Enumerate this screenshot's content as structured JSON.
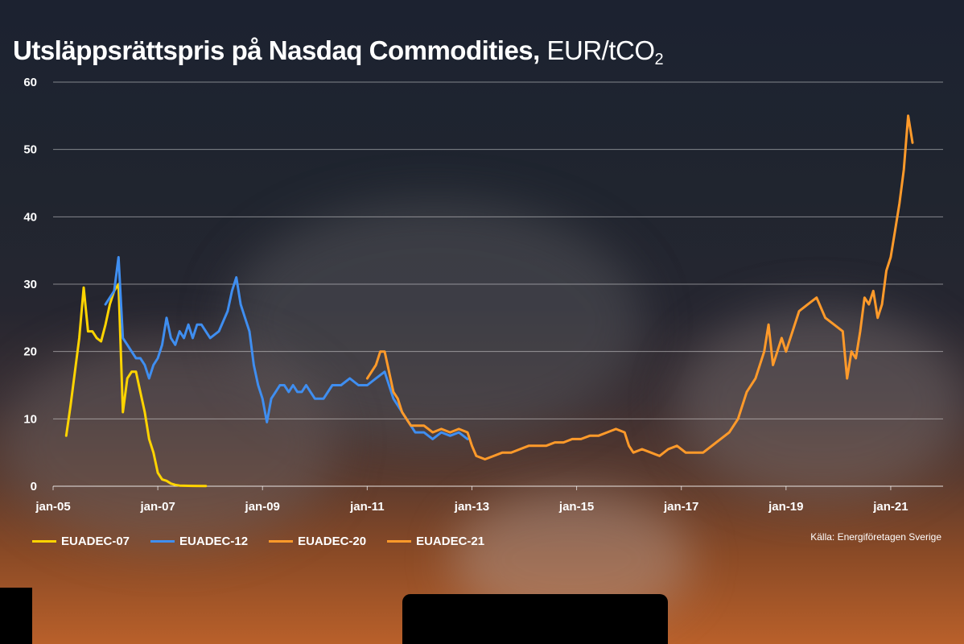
{
  "title": {
    "main": "Utsläppsrättspris på Nasdaq Commodities,",
    "unit": "EUR/tCO",
    "unit_sub": "2"
  },
  "source": "Källa: Energiföretagen Sverige",
  "chart_data": {
    "type": "line",
    "title": "Utsläppsrättspris på Nasdaq Commodities, EUR/tCO2",
    "xlabel": "",
    "ylabel": "",
    "ylim": [
      0,
      60
    ],
    "yticks": [
      0,
      10,
      20,
      30,
      40,
      50,
      60
    ],
    "xlim": [
      "2005-01",
      "2022-01"
    ],
    "xticks": [
      "jan-05",
      "jan-07",
      "jan-09",
      "jan-11",
      "jan-13",
      "jan-15",
      "jan-17",
      "jan-19",
      "jan-21"
    ],
    "grid": true,
    "legend_position": "bottom",
    "series": [
      {
        "name": "EUADEC-07",
        "color": "#ffd400",
        "points": [
          [
            "2005-04",
            7.5
          ],
          [
            "2005-05",
            12
          ],
          [
            "2005-06",
            17
          ],
          [
            "2005-07",
            22
          ],
          [
            "2005-08",
            29.5
          ],
          [
            "2005-09",
            23
          ],
          [
            "2005-10",
            23
          ],
          [
            "2005-11",
            22
          ],
          [
            "2005-12",
            21.5
          ],
          [
            "2006-01",
            24
          ],
          [
            "2006-02",
            27
          ],
          [
            "2006-03",
            29
          ],
          [
            "2006-04",
            30
          ],
          [
            "2006-05",
            11
          ],
          [
            "2006-06",
            16
          ],
          [
            "2006-07",
            17
          ],
          [
            "2006-08",
            17
          ],
          [
            "2006-09",
            14
          ],
          [
            "2006-10",
            11
          ],
          [
            "2006-11",
            7
          ],
          [
            "2006-12",
            5
          ],
          [
            "2007-01",
            2
          ],
          [
            "2007-02",
            1
          ],
          [
            "2007-03",
            0.8
          ],
          [
            "2007-04",
            0.4
          ],
          [
            "2007-05",
            0.2
          ],
          [
            "2007-06",
            0.1
          ],
          [
            "2007-09",
            0.05
          ],
          [
            "2007-12",
            0.03
          ]
        ]
      },
      {
        "name": "EUADEC-12",
        "color": "#3f8ef0",
        "points": [
          [
            "2006-01",
            27
          ],
          [
            "2006-03",
            29
          ],
          [
            "2006-04",
            34
          ],
          [
            "2006-05",
            22
          ],
          [
            "2006-06",
            21
          ],
          [
            "2006-07",
            20
          ],
          [
            "2006-08",
            19
          ],
          [
            "2006-09",
            19
          ],
          [
            "2006-10",
            18
          ],
          [
            "2006-11",
            16
          ],
          [
            "2006-12",
            18
          ],
          [
            "2007-01",
            19
          ],
          [
            "2007-02",
            21
          ],
          [
            "2007-03",
            25
          ],
          [
            "2007-04",
            22
          ],
          [
            "2007-05",
            21
          ],
          [
            "2007-06",
            23
          ],
          [
            "2007-07",
            22
          ],
          [
            "2007-08",
            24
          ],
          [
            "2007-09",
            22
          ],
          [
            "2007-10",
            24
          ],
          [
            "2007-11",
            24
          ],
          [
            "2008-01",
            22
          ],
          [
            "2008-03",
            23
          ],
          [
            "2008-05",
            26
          ],
          [
            "2008-06",
            29
          ],
          [
            "2008-07",
            31
          ],
          [
            "2008-08",
            27
          ],
          [
            "2008-09",
            25
          ],
          [
            "2008-10",
            23
          ],
          [
            "2008-11",
            18
          ],
          [
            "2008-12",
            15
          ],
          [
            "2009-01",
            13
          ],
          [
            "2009-02",
            9.5
          ],
          [
            "2009-03",
            13
          ],
          [
            "2009-04",
            14
          ],
          [
            "2009-05",
            15
          ],
          [
            "2009-06",
            15
          ],
          [
            "2009-07",
            14
          ],
          [
            "2009-08",
            15
          ],
          [
            "2009-09",
            14
          ],
          [
            "2009-10",
            14
          ],
          [
            "2009-11",
            15
          ],
          [
            "2009-12",
            14
          ],
          [
            "2010-01",
            13
          ],
          [
            "2010-03",
            13
          ],
          [
            "2010-05",
            15
          ],
          [
            "2010-07",
            15
          ],
          [
            "2010-09",
            16
          ],
          [
            "2010-11",
            15
          ],
          [
            "2011-01",
            15
          ],
          [
            "2011-03",
            16
          ],
          [
            "2011-05",
            17
          ],
          [
            "2011-07",
            13
          ],
          [
            "2011-08",
            12
          ],
          [
            "2011-09",
            11
          ],
          [
            "2011-10",
            10
          ],
          [
            "2011-11",
            9
          ],
          [
            "2011-12",
            8
          ],
          [
            "2012-02",
            8
          ],
          [
            "2012-04",
            7
          ],
          [
            "2012-06",
            8
          ],
          [
            "2012-08",
            7.5
          ],
          [
            "2012-10",
            8
          ],
          [
            "2012-12",
            7
          ]
        ]
      },
      {
        "name": "EUADEC-20",
        "color": "#ff9a2a",
        "points": [
          [
            "2011-01",
            16
          ],
          [
            "2011-03",
            18
          ],
          [
            "2011-04",
            20
          ],
          [
            "2011-05",
            20
          ],
          [
            "2011-06",
            17
          ],
          [
            "2011-07",
            14
          ],
          [
            "2011-08",
            13
          ],
          [
            "2011-09",
            11
          ],
          [
            "2011-10",
            10
          ],
          [
            "2011-11",
            9
          ],
          [
            "2011-12",
            9
          ],
          [
            "2012-02",
            9
          ],
          [
            "2012-04",
            8
          ],
          [
            "2012-06",
            8.5
          ],
          [
            "2012-08",
            8
          ],
          [
            "2012-10",
            8.5
          ],
          [
            "2012-12",
            8
          ],
          [
            "2013-01",
            6
          ],
          [
            "2013-02",
            4.5
          ],
          [
            "2013-04",
            4
          ],
          [
            "2013-06",
            4.5
          ],
          [
            "2013-08",
            5
          ],
          [
            "2013-10",
            5
          ],
          [
            "2013-12",
            5.5
          ],
          [
            "2014-02",
            6
          ],
          [
            "2014-04",
            6
          ],
          [
            "2014-06",
            6
          ],
          [
            "2014-08",
            6.5
          ],
          [
            "2014-10",
            6.5
          ],
          [
            "2014-12",
            7
          ],
          [
            "2015-02",
            7
          ],
          [
            "2015-04",
            7.5
          ],
          [
            "2015-06",
            7.5
          ],
          [
            "2015-08",
            8
          ],
          [
            "2015-10",
            8.5
          ],
          [
            "2015-12",
            8
          ],
          [
            "2016-01",
            6
          ],
          [
            "2016-02",
            5
          ],
          [
            "2016-04",
            5.5
          ],
          [
            "2016-06",
            5
          ],
          [
            "2016-08",
            4.5
          ],
          [
            "2016-10",
            5.5
          ],
          [
            "2016-12",
            6
          ],
          [
            "2017-02",
            5
          ],
          [
            "2017-04",
            5
          ],
          [
            "2017-06",
            5
          ],
          [
            "2017-08",
            6
          ],
          [
            "2017-10",
            7
          ],
          [
            "2017-12",
            8
          ],
          [
            "2018-02",
            10
          ],
          [
            "2018-04",
            14
          ],
          [
            "2018-06",
            16
          ],
          [
            "2018-08",
            20
          ],
          [
            "2018-09",
            24
          ],
          [
            "2018-10",
            18
          ],
          [
            "2018-12",
            22
          ],
          [
            "2019-01",
            20
          ],
          [
            "2019-02",
            22
          ],
          [
            "2019-04",
            26
          ],
          [
            "2019-06",
            27
          ],
          [
            "2019-08",
            28
          ],
          [
            "2019-10",
            25
          ],
          [
            "2019-12",
            24
          ],
          [
            "2020-02",
            23
          ],
          [
            "2020-03",
            16
          ],
          [
            "2020-04",
            20
          ]
        ]
      },
      {
        "name": "EUADEC-21",
        "color": "#ff9a2a",
        "points": [
          [
            "2020-04",
            20
          ],
          [
            "2020-05",
            19
          ],
          [
            "2020-06",
            23
          ],
          [
            "2020-07",
            28
          ],
          [
            "2020-08",
            27
          ],
          [
            "2020-09",
            29
          ],
          [
            "2020-10",
            25
          ],
          [
            "2020-11",
            27
          ],
          [
            "2020-12",
            32
          ],
          [
            "2021-01",
            34
          ],
          [
            "2021-02",
            38
          ],
          [
            "2021-03",
            42
          ],
          [
            "2021-04",
            47
          ],
          [
            "2021-05",
            55
          ],
          [
            "2021-06",
            51
          ]
        ]
      }
    ]
  }
}
